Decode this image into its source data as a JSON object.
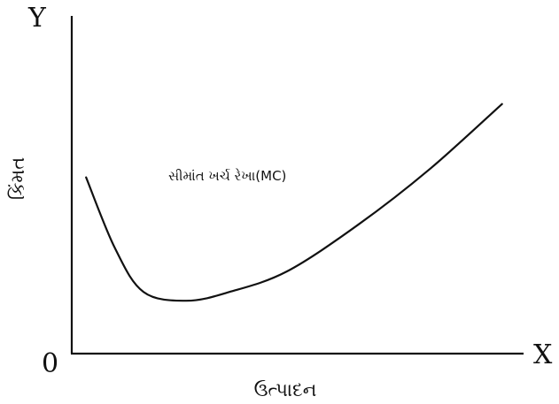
{
  "chart_data": {
    "type": "line",
    "title": "",
    "xlabel": "ઉત્પાદન",
    "ylabel": "કિંમત",
    "axis_end_labels": {
      "x": "X",
      "y": "Y"
    },
    "origin_label": "0",
    "ticks": false,
    "grid": false,
    "series": [
      {
        "name": "સીમાંત ખર્ચ રેખા(MC)",
        "shape": "U-shaped: falls to a minimum, then rises",
        "color": "#111111",
        "x": [
          10,
          30,
          50,
          80,
          110,
          150,
          200,
          250,
          300
        ],
        "y": [
          60,
          36,
          21,
          18,
          21,
          28,
          44,
          63,
          85
        ]
      }
    ],
    "xlim": [
      0,
      315
    ],
    "ylim": [
      0,
      115
    ]
  }
}
